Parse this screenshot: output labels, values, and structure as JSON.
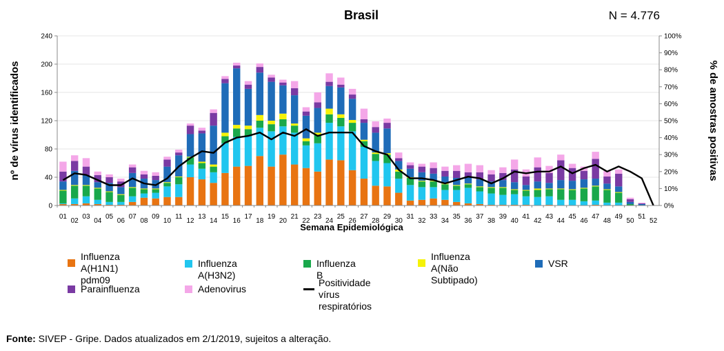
{
  "header": {
    "title": "Brasil",
    "count": "N = 4.776"
  },
  "source": {
    "label": "Fonte:",
    "text": "SIVEP - Gripe. Dados atualizados em 2/1/2019, sujeitos a alteração."
  },
  "colors": {
    "h1n1": "#e87412",
    "h3n2": "#21c6ef",
    "fluB": "#19a84b",
    "naoSub": "#f5f208",
    "vsr": "#1f6cb8",
    "parainfluenza": "#7a3aa3",
    "adenovirus": "#f4a7e8",
    "line": "#000000"
  },
  "chart_data": {
    "type": "bar",
    "stacked": true,
    "xlabel": "Semana Epidemiológica",
    "ylabel": "nº de vírus identificados",
    "y2label": "% de amostras positivas",
    "ylim": [
      0,
      240
    ],
    "yticks": [
      "0",
      "40",
      "80",
      "120",
      "160",
      "200",
      "240"
    ],
    "y2lim": [
      0,
      100
    ],
    "y2ticks": [
      "0%",
      "10%",
      "20%",
      "30%",
      "40%",
      "50%",
      "60%",
      "70%",
      "80%",
      "90%",
      "100%"
    ],
    "categories": [
      "01",
      "02",
      "03",
      "04",
      "05",
      "06",
      "07",
      "08",
      "09",
      "10",
      "11",
      "12",
      "13",
      "14",
      "15",
      "16",
      "17",
      "18",
      "19",
      "20",
      "21",
      "22",
      "23",
      "24",
      "25",
      "26",
      "27",
      "28",
      "29",
      "30",
      "31",
      "32",
      "33",
      "34",
      "35",
      "36",
      "37",
      "38",
      "39",
      "40",
      "41",
      "42",
      "43",
      "44",
      "45",
      "46",
      "47",
      "48",
      "49",
      "50",
      "51",
      "52"
    ],
    "series": [
      {
        "name": "Influenza A(H1N1) pdm09",
        "key": "h1n1",
        "values": [
          2,
          2,
          3,
          2,
          1,
          1,
          5,
          11,
          10,
          12,
          12,
          40,
          37,
          32,
          46,
          55,
          56,
          70,
          55,
          72,
          58,
          53,
          48,
          65,
          64,
          50,
          38,
          28,
          27,
          18,
          7,
          8,
          10,
          8,
          5,
          3,
          2,
          1,
          1,
          1,
          1,
          0,
          1,
          0,
          0,
          0,
          1,
          0,
          0,
          0,
          0,
          0
        ]
      },
      {
        "name": "Influenza A(H3N2)",
        "key": "h3n2",
        "values": [
          1,
          8,
          10,
          6,
          4,
          4,
          8,
          6,
          8,
          15,
          18,
          18,
          15,
          15,
          42,
          42,
          42,
          40,
          50,
          40,
          45,
          32,
          40,
          52,
          48,
          55,
          45,
          35,
          33,
          20,
          22,
          18,
          16,
          14,
          17,
          22,
          18,
          16,
          14,
          15,
          12,
          12,
          12,
          8,
          8,
          6,
          6,
          4,
          4,
          0,
          0,
          0
        ]
      },
      {
        "name": "Influenza B",
        "key": "fluB",
        "values": [
          18,
          18,
          15,
          16,
          14,
          10,
          12,
          6,
          5,
          5,
          10,
          10,
          8,
          8,
          10,
          12,
          10,
          10,
          10,
          10,
          10,
          6,
          12,
          12,
          12,
          12,
          8,
          10,
          12,
          10,
          10,
          8,
          8,
          8,
          6,
          5,
          6,
          8,
          10,
          6,
          8,
          10,
          10,
          15,
          14,
          18,
          20,
          18,
          14,
          2,
          0,
          0
        ]
      },
      {
        "name": "Influenza A(Não Subtipado)",
        "key": "naoSub",
        "values": [
          1,
          1,
          1,
          1,
          1,
          1,
          1,
          1,
          1,
          1,
          1,
          1,
          2,
          3,
          5,
          5,
          5,
          8,
          5,
          8,
          3,
          4,
          3,
          8,
          5,
          4,
          2,
          2,
          2,
          3,
          1,
          1,
          1,
          1,
          1,
          1,
          1,
          1,
          1,
          1,
          1,
          2,
          1,
          1,
          1,
          1,
          1,
          1,
          1,
          0,
          0,
          0
        ]
      },
      {
        "name": "VSR",
        "key": "vsr",
        "values": [
          12,
          20,
          14,
          8,
          12,
          10,
          20,
          14,
          12,
          22,
          30,
          32,
          40,
          55,
          70,
          80,
          52,
          60,
          55,
          40,
          40,
          32,
          35,
          32,
          38,
          30,
          24,
          28,
          35,
          12,
          12,
          12,
          10,
          10,
          10,
          10,
          10,
          8,
          10,
          10,
          7,
          10,
          8,
          12,
          12,
          12,
          10,
          8,
          8,
          3,
          2,
          0
        ]
      },
      {
        "name": "Parainfluenza",
        "key": "parainfluenza",
        "values": [
          14,
          14,
          12,
          10,
          8,
          8,
          8,
          6,
          6,
          10,
          4,
          12,
          4,
          18,
          6,
          4,
          6,
          8,
          6,
          4,
          10,
          6,
          8,
          6,
          4,
          6,
          5,
          8,
          8,
          4,
          5,
          8,
          8,
          8,
          10,
          6,
          10,
          10,
          10,
          18,
          12,
          20,
          14,
          28,
          18,
          12,
          28,
          10,
          18,
          4,
          1,
          0
        ]
      },
      {
        "name": "Adenovirus",
        "key": "adenovirus",
        "values": [
          14,
          8,
          12,
          5,
          4,
          4,
          4,
          5,
          5,
          4,
          4,
          3,
          4,
          5,
          4,
          4,
          5,
          5,
          4,
          4,
          10,
          6,
          14,
          12,
          10,
          8,
          15,
          8,
          6,
          8,
          4,
          4,
          8,
          6,
          8,
          12,
          10,
          6,
          8,
          14,
          10,
          14,
          10,
          8,
          6,
          6,
          10,
          8,
          6,
          2,
          1,
          0
        ]
      }
    ],
    "line": {
      "name": "Positividade vírus respiratórios",
      "axis": "right",
      "values": [
        15,
        19,
        18,
        15,
        12,
        12,
        16,
        13,
        12,
        16,
        23,
        28,
        32,
        31,
        37,
        40,
        41,
        43,
        39,
        43,
        41,
        45,
        41,
        43,
        43,
        43,
        35,
        32,
        30,
        21,
        16,
        16,
        15,
        13,
        15,
        17,
        16,
        13,
        16,
        20,
        19,
        20,
        20,
        23,
        19,
        22,
        24,
        20,
        23,
        20,
        16,
        0
      ]
    },
    "legend_position": "bottom"
  },
  "legend": {
    "items": [
      {
        "key": "h1n1",
        "label": "Influenza A(H1N1)\npdm09"
      },
      {
        "key": "h3n2",
        "label": "Influenza A(H3N2)"
      },
      {
        "key": "fluB",
        "label": "Influenza B"
      },
      {
        "key": "naoSub",
        "label": "Influenza A(Não\nSubtipado)"
      },
      {
        "key": "vsr",
        "label": "VSR"
      },
      {
        "key": "parainfluenza",
        "label": "Parainfluenza"
      },
      {
        "key": "adenovirus",
        "label": "Adenovirus"
      },
      {
        "key": "line",
        "label": "Positividade vírus\nrespiratórios"
      }
    ]
  }
}
